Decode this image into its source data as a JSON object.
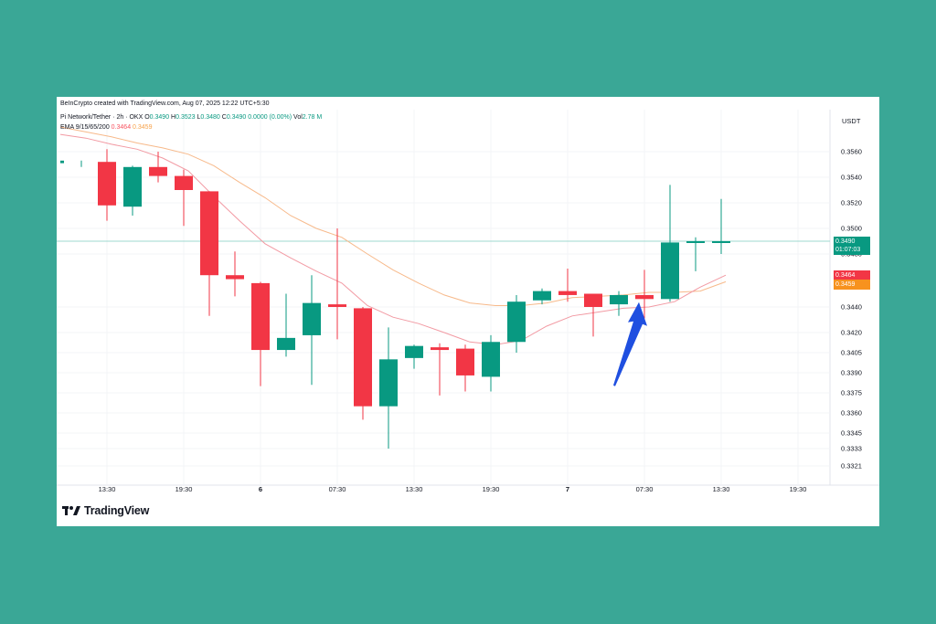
{
  "header": {
    "attribution": "BeInCrypto created with TradingView.com, Aug 07, 2025 12:22 UTC+5:30",
    "symbol": "Pi Network/Tether · 2h · OKX",
    "o_label": "O",
    "o_value": "0.3490",
    "h_label": "H",
    "h_value": "0.3523",
    "l_label": "L",
    "l_value": "0.3480",
    "c_label": "C",
    "c_value": "0.3490",
    "change": "0.0000 (0.00%)",
    "vol_label": "Vol",
    "vol_value": "2.78 M",
    "ema_label": "EMA 9/15/65/200",
    "ema_fast_value": "0.3464",
    "ema_slow_value": "0.3459",
    "currency": "USDT"
  },
  "price_tags": {
    "last_price": "0.3490",
    "countdown": "01:07:03",
    "ema_fast": "0.3464",
    "ema_slow": "0.3459"
  },
  "logo": {
    "text": "TradingView"
  },
  "colors": {
    "background": "#3aa796",
    "up": "#089981",
    "down": "#f23645",
    "ema_fast": "#f29aa3",
    "ema_slow": "#f7b98a",
    "last_price_line": "#9fd8cf",
    "arrow": "#1f4fe0"
  },
  "chart_data": {
    "type": "candlestick",
    "title": "Pi Network/Tether · 2h · OKX",
    "ylabel": "USDT",
    "y_ticks": [
      "0.3560",
      "0.3540",
      "0.3520",
      "0.3500",
      "0.3480",
      "0.3440",
      "0.3420",
      "0.3405",
      "0.3390",
      "0.3375",
      "0.3360",
      "0.3345",
      "0.3333",
      "0.3321"
    ],
    "x_ticks": [
      {
        "label": "13:30",
        "index": 1,
        "bold": false
      },
      {
        "label": "19:30",
        "index": 4,
        "bold": false
      },
      {
        "label": "6",
        "index": 7,
        "bold": true
      },
      {
        "label": "07:30",
        "index": 10,
        "bold": false
      },
      {
        "label": "13:30",
        "index": 13,
        "bold": false
      },
      {
        "label": "19:30",
        "index": 16,
        "bold": false
      },
      {
        "label": "7",
        "index": 19,
        "bold": true
      },
      {
        "label": "07:30",
        "index": 22,
        "bold": false
      },
      {
        "label": "13:30",
        "index": 25,
        "bold": false
      },
      {
        "label": "19:30",
        "index": 28,
        "bold": false
      }
    ],
    "candles": [
      {
        "open": 0.3551,
        "high": 0.3553,
        "low": 0.3548,
        "close": 0.3553
      },
      {
        "open": 0.3552,
        "high": 0.3562,
        "low": 0.3506,
        "close": 0.3518
      },
      {
        "open": 0.3517,
        "high": 0.3549,
        "low": 0.351,
        "close": 0.3548
      },
      {
        "open": 0.3548,
        "high": 0.356,
        "low": 0.3536,
        "close": 0.3541
      },
      {
        "open": 0.3541,
        "high": 0.3546,
        "low": 0.3502,
        "close": 0.353
      },
      {
        "open": 0.3529,
        "high": 0.3529,
        "low": 0.3433,
        "close": 0.3464
      },
      {
        "open": 0.3464,
        "high": 0.3482,
        "low": 0.3448,
        "close": 0.3461
      },
      {
        "open": 0.3458,
        "high": 0.3459,
        "low": 0.338,
        "close": 0.3407
      },
      {
        "open": 0.3407,
        "high": 0.345,
        "low": 0.3402,
        "close": 0.3416
      },
      {
        "open": 0.3418,
        "high": 0.3464,
        "low": 0.3381,
        "close": 0.3443
      },
      {
        "open": 0.3442,
        "high": 0.35,
        "low": 0.3415,
        "close": 0.344
      },
      {
        "open": 0.3439,
        "high": 0.344,
        "low": 0.3355,
        "close": 0.3365
      },
      {
        "open": 0.3365,
        "high": 0.3424,
        "low": 0.3333,
        "close": 0.34
      },
      {
        "open": 0.3401,
        "high": 0.3411,
        "low": 0.3393,
        "close": 0.341
      },
      {
        "open": 0.3409,
        "high": 0.3412,
        "low": 0.3373,
        "close": 0.3407
      },
      {
        "open": 0.3408,
        "high": 0.3411,
        "low": 0.3376,
        "close": 0.3388
      },
      {
        "open": 0.3387,
        "high": 0.3418,
        "low": 0.3376,
        "close": 0.3413
      },
      {
        "open": 0.3413,
        "high": 0.3449,
        "low": 0.3405,
        "close": 0.3444
      },
      {
        "open": 0.3445,
        "high": 0.3454,
        "low": 0.3442,
        "close": 0.3452
      },
      {
        "open": 0.3452,
        "high": 0.3469,
        "low": 0.3444,
        "close": 0.3449
      },
      {
        "open": 0.345,
        "high": 0.345,
        "low": 0.3417,
        "close": 0.344
      },
      {
        "open": 0.3442,
        "high": 0.3452,
        "low": 0.3433,
        "close": 0.3449
      },
      {
        "open": 0.3449,
        "high": 0.3468,
        "low": 0.3431,
        "close": 0.3446
      },
      {
        "open": 0.3446,
        "high": 0.3534,
        "low": 0.3444,
        "close": 0.3489
      },
      {
        "open": 0.349,
        "high": 0.3493,
        "low": 0.3467,
        "close": 0.349
      },
      {
        "open": 0.349,
        "high": 0.3523,
        "low": 0.348,
        "close": 0.349
      }
    ],
    "ema_fast": [
      0.3574,
      0.3571,
      0.3566,
      0.3562,
      0.3555,
      0.3545,
      0.3525,
      0.3506,
      0.3488,
      0.3477,
      0.3467,
      0.3458,
      0.3441,
      0.3432,
      0.3427,
      0.342,
      0.3413,
      0.3411,
      0.3414,
      0.3425,
      0.3433,
      0.3436,
      0.3439,
      0.344,
      0.3444,
      0.3455,
      0.3464
    ],
    "ema_slow": [
      0.358,
      0.3576,
      0.3572,
      0.3567,
      0.3563,
      0.3558,
      0.3549,
      0.3536,
      0.3524,
      0.351,
      0.35,
      0.3493,
      0.348,
      0.3468,
      0.3458,
      0.3449,
      0.3443,
      0.3441,
      0.3441,
      0.3443,
      0.3447,
      0.3448,
      0.3449,
      0.3451,
      0.3451,
      0.3452,
      0.3459
    ],
    "last_price": 0.349,
    "annotations": [
      {
        "type": "arrow",
        "index": 22,
        "value": 0.3445,
        "note": ""
      }
    ]
  }
}
